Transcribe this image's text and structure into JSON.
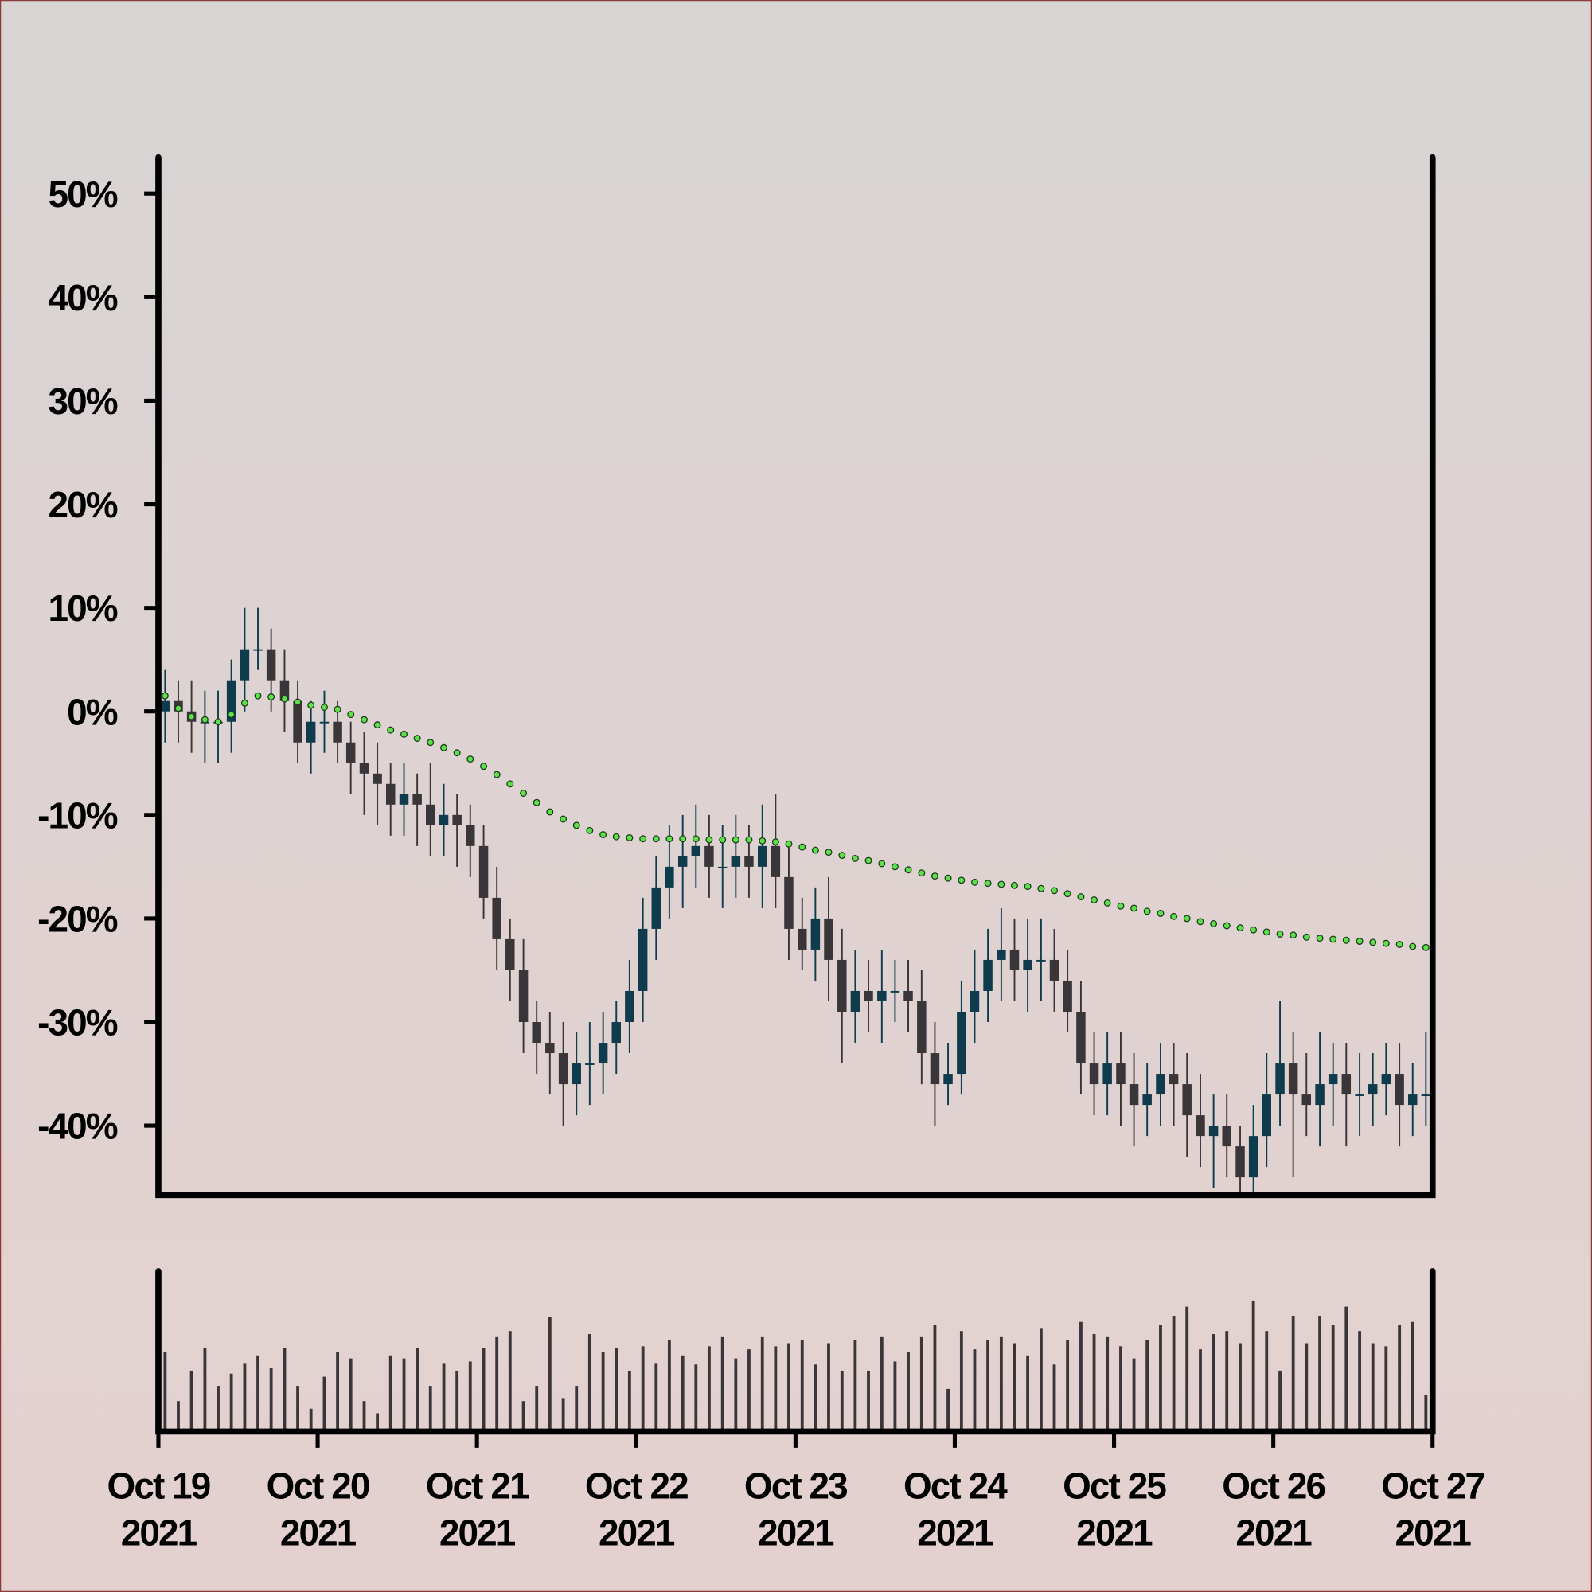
{
  "chart_data": {
    "type": "candlestick",
    "x": [
      0.042,
      0.125,
      0.208,
      0.292,
      0.375,
      0.458,
      0.542,
      0.625,
      0.708,
      0.792,
      0.875,
      0.958,
      1.042,
      1.125,
      1.208,
      1.292,
      1.375,
      1.458,
      1.542,
      1.625,
      1.708,
      1.792,
      1.875,
      1.958,
      2.042,
      2.125,
      2.208,
      2.292,
      2.375,
      2.458,
      2.542,
      2.625,
      2.708,
      2.792,
      2.875,
      2.958,
      3.042,
      3.125,
      3.208,
      3.292,
      3.375,
      3.458,
      3.542,
      3.625,
      3.708,
      3.792,
      3.875,
      3.958,
      4.042,
      4.125,
      4.208,
      4.292,
      4.375,
      4.458,
      4.542,
      4.625,
      4.708,
      4.792,
      4.875,
      4.958,
      5.042,
      5.125,
      5.208,
      5.292,
      5.375,
      5.458,
      5.542,
      5.625,
      5.708,
      5.792,
      5.875,
      5.958,
      6.042,
      6.125,
      6.208,
      6.292,
      6.375,
      6.458,
      6.542,
      6.625,
      6.708,
      6.792,
      6.875,
      6.958,
      7.042,
      7.125,
      7.208,
      7.292,
      7.375,
      7.458,
      7.542,
      7.625,
      7.708,
      7.792,
      7.875,
      7.958
    ],
    "open": [
      0,
      1,
      0,
      -1,
      -1,
      -1,
      3,
      6,
      6,
      3,
      1,
      -3,
      -1,
      -1,
      -3,
      -5,
      -6,
      -7,
      -9,
      -8,
      -9,
      -11,
      -10,
      -11,
      -13,
      -18,
      -22,
      -25,
      -30,
      -32,
      -33,
      -36,
      -34,
      -34,
      -32,
      -30,
      -27,
      -21,
      -17,
      -15,
      -14,
      -13,
      -15,
      -15,
      -14,
      -15,
      -13,
      -16,
      -21,
      -23,
      -20,
      -24,
      -29,
      -27,
      -28,
      -27,
      -27,
      -28,
      -33,
      -36,
      -35,
      -29,
      -27,
      -24,
      -23,
      -25,
      -24,
      -24,
      -26,
      -29,
      -34,
      -36,
      -34,
      -36,
      -38,
      -37,
      -35,
      -36,
      -39,
      -41,
      -40,
      -42,
      -45,
      -41,
      -37,
      -34,
      -37,
      -38,
      -36,
      -35,
      -37,
      -37,
      -36,
      -35,
      -38,
      -37
    ],
    "high": [
      4,
      3,
      3,
      2,
      2,
      5,
      10,
      10,
      8,
      6,
      3,
      1,
      2,
      1,
      -1,
      -2,
      -3,
      -5,
      -5,
      -6,
      -5,
      -7,
      -8,
      -9,
      -11,
      -15,
      -20,
      -22,
      -28,
      -29,
      -30,
      -31,
      -30,
      -29,
      -28,
      -24,
      -18,
      -14,
      -11,
      -10,
      -9,
      -10,
      -11,
      -10,
      -11,
      -9,
      -8,
      -13,
      -18,
      -17,
      -16,
      -21,
      -23,
      -24,
      -23,
      -24,
      -24,
      -25,
      -30,
      -32,
      -26,
      -23,
      -21,
      -19,
      -20,
      -20,
      -20,
      -21,
      -23,
      -26,
      -31,
      -31,
      -31,
      -33,
      -34,
      -32,
      -32,
      -33,
      -35,
      -37,
      -37,
      -40,
      -38,
      -33,
      -28,
      -31,
      -33,
      -31,
      -32,
      -32,
      -33,
      -33,
      -32,
      -32,
      -34,
      -31
    ],
    "low": [
      -3,
      -3,
      -4,
      -5,
      -5,
      -4,
      0,
      4,
      0,
      -2,
      -5,
      -6,
      -4,
      -5,
      -8,
      -10,
      -11,
      -12,
      -12,
      -13,
      -14,
      -14,
      -15,
      -16,
      -20,
      -25,
      -28,
      -33,
      -35,
      -37,
      -40,
      -39,
      -38,
      -37,
      -35,
      -33,
      -30,
      -24,
      -20,
      -19,
      -17,
      -18,
      -19,
      -18,
      -18,
      -19,
      -19,
      -24,
      -25,
      -26,
      -28,
      -34,
      -32,
      -31,
      -32,
      -30,
      -31,
      -36,
      -40,
      -38,
      -37,
      -32,
      -30,
      -28,
      -28,
      -29,
      -28,
      -29,
      -31,
      -37,
      -39,
      -39,
      -40,
      -42,
      -41,
      -40,
      -40,
      -43,
      -44,
      -46,
      -45,
      -46.5,
      -46.5,
      -44,
      -40,
      -45,
      -41,
      -42,
      -40,
      -42,
      -41,
      -40,
      -39,
      -42,
      -41,
      -40
    ],
    "close": [
      1,
      0,
      -1,
      -1,
      -1,
      3,
      6,
      6,
      3,
      1,
      -3,
      -1,
      -1,
      -3,
      -5,
      -6,
      -7,
      -9,
      -8,
      -9,
      -11,
      -10,
      -11,
      -13,
      -18,
      -22,
      -25,
      -30,
      -32,
      -33,
      -36,
      -34,
      -34,
      -32,
      -30,
      -27,
      -21,
      -17,
      -15,
      -14,
      -13,
      -15,
      -15,
      -14,
      -15,
      -13,
      -16,
      -21,
      -23,
      -20,
      -24,
      -29,
      -27,
      -28,
      -27,
      -27,
      -28,
      -33,
      -36,
      -35,
      -29,
      -27,
      -24,
      -23,
      -25,
      -24,
      -24,
      -26,
      -29,
      -34,
      -36,
      -34,
      -36,
      -38,
      -37,
      -35,
      -36,
      -39,
      -41,
      -40,
      -42,
      -45,
      -41,
      -37,
      -34,
      -37,
      -38,
      -36,
      -35,
      -37,
      -37,
      -36,
      -35,
      -38,
      -37,
      -37
    ],
    "volume": [
      52,
      20,
      40,
      55,
      30,
      38,
      45,
      50,
      42,
      55,
      30,
      15,
      36,
      52,
      48,
      20,
      12,
      50,
      48,
      55,
      30,
      45,
      40,
      46,
      55,
      62,
      66,
      20,
      30,
      75,
      22,
      30,
      64,
      52,
      55,
      40,
      56,
      45,
      60,
      50,
      44,
      56,
      62,
      48,
      54,
      62,
      56,
      58,
      60,
      44,
      58,
      40,
      60,
      40,
      62,
      46,
      52,
      62,
      70,
      28,
      66,
      54,
      60,
      62,
      58,
      50,
      68,
      44,
      60,
      72,
      64,
      62,
      56,
      48,
      60,
      70,
      76,
      82,
      54,
      64,
      66,
      58,
      86,
      66,
      40,
      76,
      58,
      76,
      70,
      82,
      66,
      58,
      56,
      70,
      72,
      24
    ],
    "up_color": "#0f3c4c",
    "down_color": "#3a3538",
    "ma": {
      "color": "#5ee04a",
      "values": [
        1.5,
        0.3,
        -0.5,
        -0.8,
        -1,
        -0.3,
        0.8,
        1.5,
        1.4,
        1.2,
        0.9,
        0.6,
        0.4,
        0.2,
        -0.3,
        -0.8,
        -1.3,
        -1.8,
        -2.2,
        -2.6,
        -3.0,
        -3.5,
        -4.0,
        -4.6,
        -5.3,
        -6.1,
        -7.0,
        -7.9,
        -8.8,
        -9.7,
        -10.4,
        -11.0,
        -11.5,
        -11.9,
        -12.1,
        -12.2,
        -12.3,
        -12.3,
        -12.3,
        -12.3,
        -12.3,
        -12.4,
        -12.4,
        -12.4,
        -12.4,
        -12.5,
        -12.6,
        -12.8,
        -13.1,
        -13.4,
        -13.6,
        -13.9,
        -14.2,
        -14.4,
        -14.7,
        -15.0,
        -15.3,
        -15.6,
        -15.9,
        -16.1,
        -16.3,
        -16.5,
        -16.6,
        -16.7,
        -16.8,
        -16.9,
        -17.1,
        -17.3,
        -17.6,
        -17.9,
        -18.2,
        -18.5,
        -18.8,
        -19.0,
        -19.3,
        -19.5,
        -19.8,
        -20.0,
        -20.3,
        -20.5,
        -20.7,
        -20.9,
        -21.1,
        -21.3,
        -21.5,
        -21.6,
        -21.8,
        -21.9,
        -22.0,
        -22.1,
        -22.2,
        -22.3,
        -22.4,
        -22.5,
        -22.7,
        -22.8
      ]
    },
    "ylim": [
      -46.7,
      53.5
    ],
    "yticks": [
      {
        "value": -40,
        "label": "-40%"
      },
      {
        "value": -30,
        "label": "-30%"
      },
      {
        "value": -20,
        "label": "-20%"
      },
      {
        "value": -10,
        "label": "-10%"
      },
      {
        "value": 0,
        "label": "0%"
      },
      {
        "value": 10,
        "label": "10%"
      },
      {
        "value": 20,
        "label": "20%"
      },
      {
        "value": 30,
        "label": "30%"
      },
      {
        "value": 40,
        "label": "40%"
      },
      {
        "value": 50,
        "label": "50%"
      }
    ],
    "xlim": [
      0,
      8
    ],
    "xticks": [
      {
        "value": 0,
        "label": "Oct 19\n2021"
      },
      {
        "value": 1,
        "label": "Oct 20\n2021"
      },
      {
        "value": 2,
        "label": "Oct 21\n2021"
      },
      {
        "value": 3,
        "label": "Oct 22\n2021"
      },
      {
        "value": 4,
        "label": "Oct 23\n2021"
      },
      {
        "value": 5,
        "label": "Oct 24\n2021"
      },
      {
        "value": 6,
        "label": "Oct 25\n2021"
      },
      {
        "value": 7,
        "label": "Oct 26\n2021"
      },
      {
        "value": 8,
        "label": "Oct 27\n2021"
      }
    ],
    "volume_ylim": [
      0,
      100
    ]
  }
}
